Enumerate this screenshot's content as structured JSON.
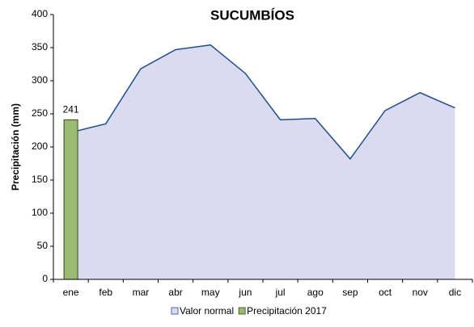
{
  "chart_data": {
    "type": "area-bar",
    "title": "SUCUMBÍOS",
    "y_label": "Precipitación (mm)",
    "categories": [
      "ene",
      "feb",
      "mar",
      "abr",
      "may",
      "jun",
      "jul",
      "ago",
      "sep",
      "oct",
      "nov",
      "dic"
    ],
    "series": [
      {
        "name": "Valor normal",
        "type": "area",
        "color": "#dadaf0",
        "line_color": "#1f4e8c",
        "values": [
          222,
          235,
          318,
          347,
          354,
          311,
          241,
          243,
          182,
          255,
          282,
          259
        ]
      },
      {
        "name": "Precipitación 2017",
        "type": "bar",
        "color": "#9bbb73",
        "line_color": "#2f4a18",
        "values": [
          241,
          null,
          null,
          null,
          null,
          null,
          null,
          null,
          null,
          null,
          null,
          null
        ]
      }
    ],
    "ylim": [
      0,
      400
    ],
    "yticks": [
      0,
      50,
      100,
      150,
      200,
      250,
      300,
      350,
      400
    ],
    "grid": false,
    "legend": "bottom"
  }
}
